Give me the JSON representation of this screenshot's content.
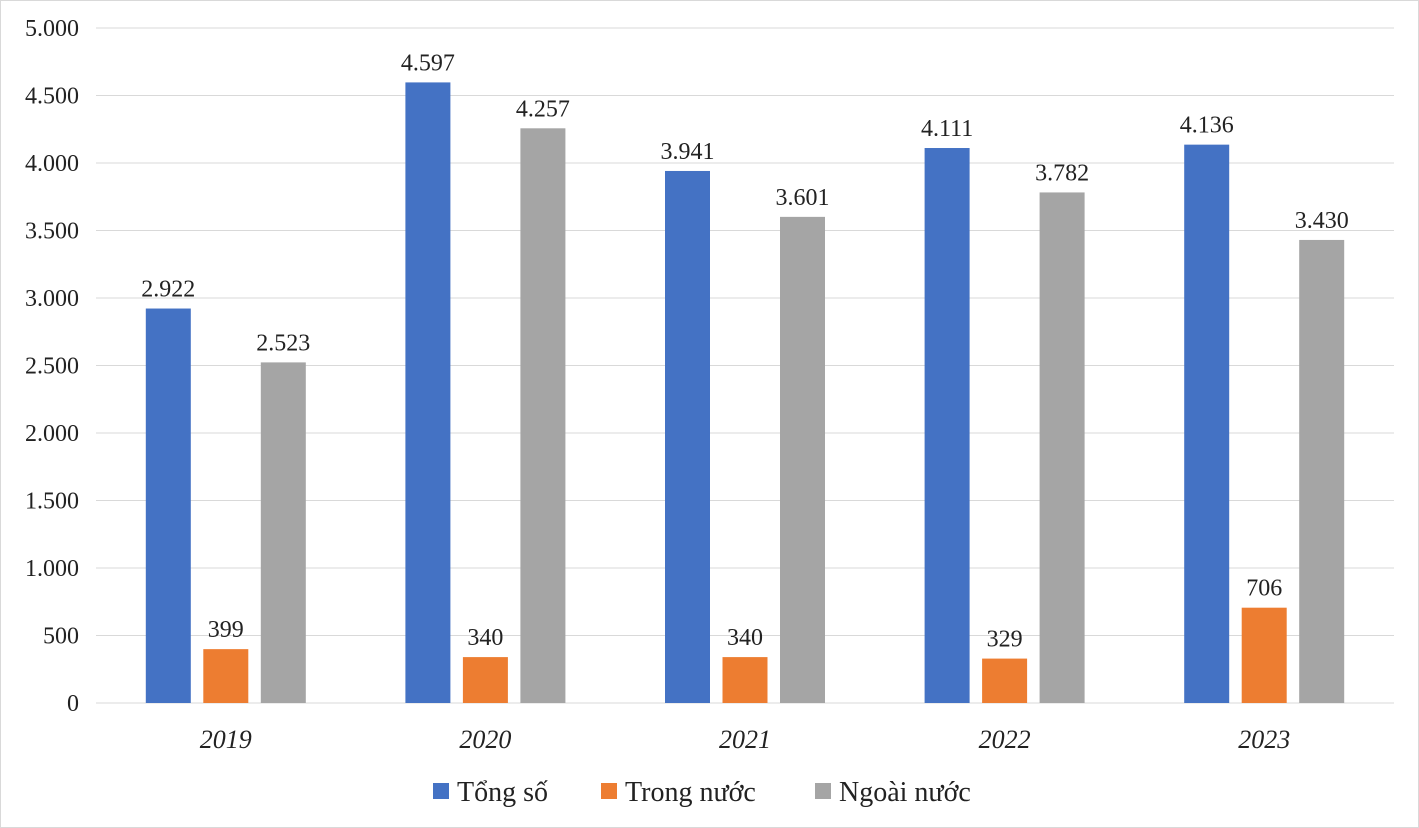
{
  "chart_data": {
    "type": "bar",
    "categories": [
      "2019",
      "2020",
      "2021",
      "2022",
      "2023"
    ],
    "series": [
      {
        "name": "Tổng số",
        "color": "#4472C4",
        "values": [
          2922,
          4597,
          3941,
          4111,
          4136
        ],
        "labels": [
          "2.922",
          "4.597",
          "3.941",
          "4.111",
          "4.136"
        ]
      },
      {
        "name": "Trong nước",
        "color": "#ED7D31",
        "values": [
          399,
          340,
          340,
          329,
          706
        ],
        "labels": [
          "399",
          "340",
          "340",
          "329",
          "706"
        ]
      },
      {
        "name": "Ngoài nước",
        "color": "#A5A5A5",
        "values": [
          2523,
          4257,
          3601,
          3782,
          3430
        ],
        "labels": [
          "2.523",
          "4.257",
          "3.601",
          "3.782",
          "3.430"
        ]
      }
    ],
    "ylim": [
      0,
      5000
    ],
    "yticks": [
      0,
      500,
      1000,
      1500,
      2000,
      2500,
      3000,
      3500,
      4000,
      4500,
      5000
    ],
    "ytick_labels": [
      "0",
      "500",
      "1.000",
      "1.500",
      "2.000",
      "2.500",
      "3.000",
      "3.500",
      "4.000",
      "4.500",
      "5.000"
    ],
    "grid": true,
    "legend": "bottom",
    "title": "",
    "xlabel": "",
    "ylabel": ""
  }
}
